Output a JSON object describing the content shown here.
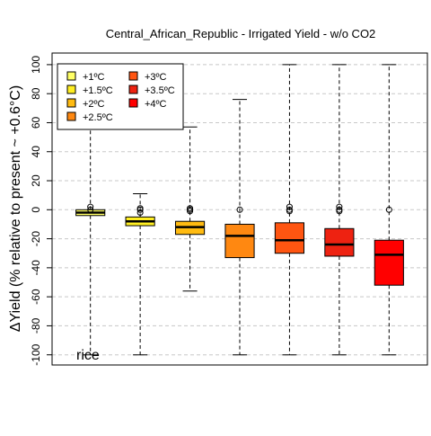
{
  "chart_data": {
    "type": "box",
    "title": "Central_African_Republic - Irrigated Yield - w/o CO2",
    "ylabel": "ΔYield (% relative to present ~ +0.6°C)",
    "annotation": "rice",
    "ylim": [
      -107,
      108
    ],
    "yticks": [
      -100,
      -80,
      -60,
      -40,
      -20,
      0,
      20,
      40,
      60,
      80,
      100
    ],
    "grid": "horizontal dashed",
    "legend_position": "top-left",
    "series": [
      {
        "name": "+1ºC",
        "color": "#FFFF66",
        "whisker_low": -100,
        "q1": -4,
        "median": -2,
        "q3": 0,
        "whisker_high": 100,
        "outliers": [
          0,
          2
        ]
      },
      {
        "name": "+1.5ºC",
        "color": "#FFEE22",
        "whisker_low": -100,
        "q1": -11,
        "median": -8,
        "q3": -5,
        "whisker_high": 11,
        "outliers": [
          -2,
          0,
          1
        ]
      },
      {
        "name": "+2ºC",
        "color": "#FFBB11",
        "whisker_low": -56,
        "q1": -17,
        "median": -12,
        "q3": -8,
        "whisker_high": 57,
        "outliers": [
          -1,
          0,
          1
        ]
      },
      {
        "name": "+2.5ºC",
        "color": "#FF8811",
        "whisker_low": -100,
        "q1": -33,
        "median": -18,
        "q3": -10,
        "whisker_high": 76,
        "outliers": [
          0
        ]
      },
      {
        "name": "+3ºC",
        "color": "#FF5511",
        "whisker_low": -100,
        "q1": -30,
        "median": -21,
        "q3": -9,
        "whisker_high": 100,
        "outliers": [
          -1,
          0,
          2
        ]
      },
      {
        "name": "+3.5ºC",
        "color": "#EE2211",
        "whisker_low": -100,
        "q1": -32,
        "median": -24,
        "q3": -13,
        "whisker_high": 100,
        "outliers": [
          -1,
          0,
          2
        ]
      },
      {
        "name": "+4ºC",
        "color": "#FF0000",
        "whisker_low": -100,
        "q1": -52,
        "median": -31,
        "q3": -21,
        "whisker_high": 100,
        "outliers": [
          0
        ]
      }
    ]
  }
}
